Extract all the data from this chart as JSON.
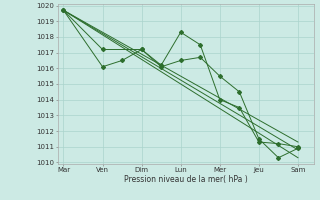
{
  "background_color": "#cceae4",
  "grid_color": "#aad4cc",
  "line_color": "#2d6e2d",
  "xlabel": "Pression niveau de la mer( hPa )",
  "ylim": [
    1010,
    1020
  ],
  "yticks": [
    1010,
    1011,
    1012,
    1013,
    1014,
    1015,
    1016,
    1017,
    1018,
    1019,
    1020
  ],
  "xtick_labels": [
    "Mar",
    "Ven",
    "Dim",
    "Lun",
    "Mer",
    "Jeu",
    "Sam"
  ],
  "xtick_positions": [
    0,
    2,
    4,
    6,
    8,
    10,
    12
  ],
  "xlim": [
    -0.3,
    12.8
  ],
  "series": [
    {
      "x": [
        0,
        2,
        4,
        5,
        6,
        7,
        8,
        9,
        10,
        11,
        12
      ],
      "y": [
        1019.7,
        1017.2,
        1017.2,
        1016.2,
        1018.3,
        1017.5,
        1014.0,
        1013.5,
        1011.3,
        1011.2,
        1011.0
      ],
      "has_marker": true
    },
    {
      "x": [
        0,
        2,
        3,
        4,
        5,
        6,
        7,
        8,
        9,
        10,
        11,
        12
      ],
      "y": [
        1019.7,
        1016.1,
        1016.5,
        1017.2,
        1016.1,
        1016.5,
        1016.7,
        1015.5,
        1014.5,
        1011.5,
        1010.3,
        1010.9
      ],
      "has_marker": true
    },
    {
      "x": [
        0,
        12
      ],
      "y": [
        1019.7,
        1010.3
      ],
      "has_marker": false
    },
    {
      "x": [
        0,
        12
      ],
      "y": [
        1019.7,
        1010.8
      ],
      "has_marker": false
    },
    {
      "x": [
        0,
        12
      ],
      "y": [
        1019.7,
        1011.3
      ],
      "has_marker": false
    }
  ]
}
